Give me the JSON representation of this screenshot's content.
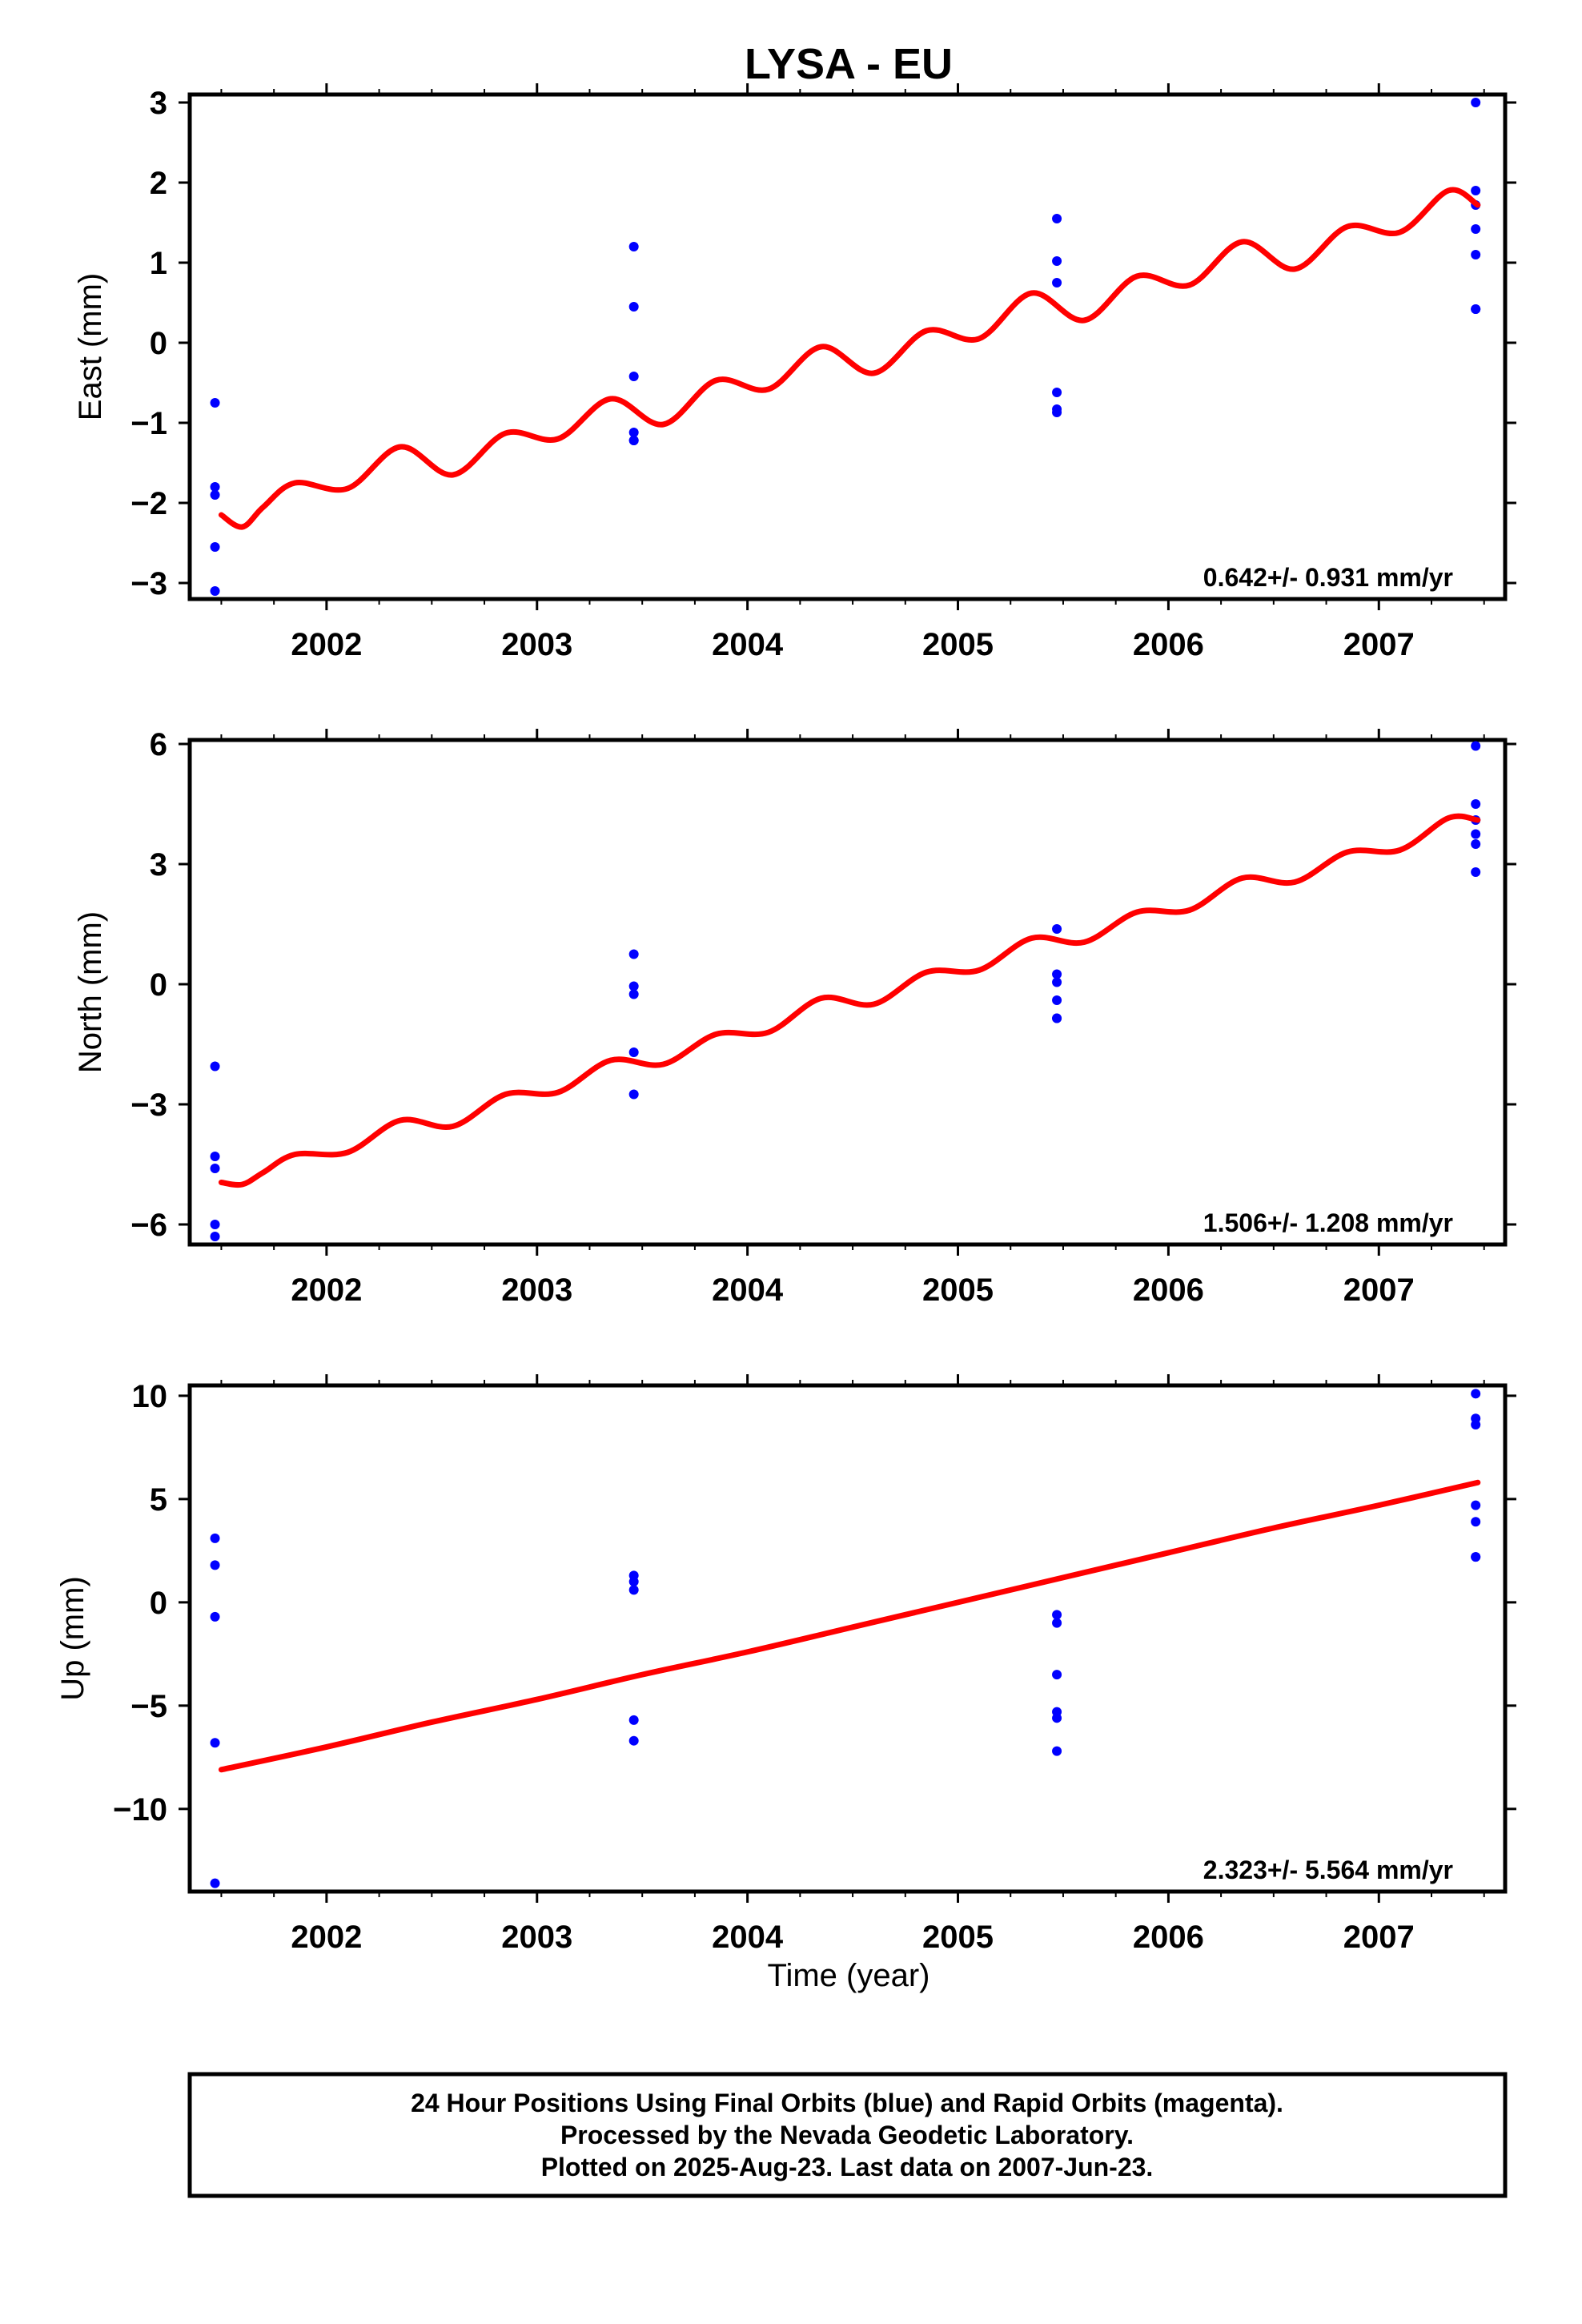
{
  "title": "LYSA - EU",
  "xlabel": "Time (year)",
  "colors": {
    "fit": "#ff0000",
    "final_orbits": "#0000ff",
    "frame": "#000000"
  },
  "caption": {
    "line1": "24 Hour Positions Using Final Orbits (blue) and Rapid Orbits (magenta).",
    "line2": "Processed by the Nevada Geodetic Laboratory.",
    "line3": "Plotted on 2025-Aug-23. Last data on 2007-Jun-23."
  },
  "chart_data": [
    {
      "type": "scatter",
      "ylabel": "East (mm)",
      "rate_label": "0.642+/- 0.931 mm/yr",
      "xlim": [
        2001.35,
        2007.6
      ],
      "ylim": [
        -3.2,
        3.1
      ],
      "x_ticks": [
        2002,
        2003,
        2004,
        2005,
        2006,
        2007
      ],
      "x_tick_labels": [
        "2002",
        "2003",
        "2004",
        "2005",
        "2006",
        "2007"
      ],
      "y_ticks": [
        -3,
        -2,
        -1,
        0,
        1,
        2,
        3
      ],
      "y_tick_labels": [
        "−3",
        "−2",
        "−1",
        "0",
        "1",
        "2",
        "3"
      ],
      "points": {
        "x": [
          2001.47,
          2001.47,
          2001.47,
          2001.47,
          2001.47,
          2003.46,
          2003.46,
          2003.46,
          2003.46,
          2003.46,
          2003.46,
          2005.47,
          2005.47,
          2005.47,
          2005.47,
          2005.47,
          2005.47,
          2007.46,
          2007.46,
          2007.46,
          2007.46,
          2007.46,
          2007.46,
          2007.46
        ],
        "y": [
          -0.75,
          -1.8,
          -1.9,
          -2.55,
          -3.1,
          1.2,
          0.45,
          -0.42,
          -1.12,
          -1.22,
          -1.22,
          1.55,
          1.02,
          0.75,
          -0.62,
          -0.83,
          -0.87,
          3.0,
          1.9,
          1.72,
          1.42,
          1.1,
          0.42,
          0.42
        ]
      },
      "fit": {
        "x": [
          2001.5,
          2001.6,
          2001.7,
          2001.85,
          2002.1,
          2002.35,
          2002.6,
          2002.85,
          2003.1,
          2003.35,
          2003.6,
          2003.85,
          2004.1,
          2004.35,
          2004.6,
          2004.85,
          2005.1,
          2005.35,
          2005.6,
          2005.85,
          2006.1,
          2006.35,
          2006.6,
          2006.85,
          2007.1,
          2007.33,
          2007.47
        ],
        "y": [
          -2.15,
          -2.3,
          -2.05,
          -1.75,
          -1.82,
          -1.3,
          -1.65,
          -1.13,
          -1.2,
          -0.7,
          -1.02,
          -0.47,
          -0.58,
          -0.05,
          -0.38,
          0.15,
          0.05,
          0.62,
          0.28,
          0.83,
          0.72,
          1.26,
          0.92,
          1.45,
          1.38,
          1.9,
          1.72
        ]
      }
    },
    {
      "type": "scatter",
      "ylabel": "North (mm)",
      "rate_label": "1.506+/- 1.208 mm/yr",
      "xlim": [
        2001.35,
        2007.6
      ],
      "ylim": [
        -6.5,
        6.1
      ],
      "x_ticks": [
        2002,
        2003,
        2004,
        2005,
        2006,
        2007
      ],
      "x_tick_labels": [
        "2002",
        "2003",
        "2004",
        "2005",
        "2006",
        "2007"
      ],
      "y_ticks": [
        -6,
        -3,
        0,
        3,
        6
      ],
      "y_tick_labels": [
        "−6",
        "−3",
        "0",
        "3",
        "6"
      ],
      "points": {
        "x": [
          2001.47,
          2001.47,
          2001.47,
          2001.47,
          2001.47,
          2003.46,
          2003.46,
          2003.46,
          2003.46,
          2003.46,
          2005.47,
          2005.47,
          2005.47,
          2005.47,
          2005.47,
          2005.47,
          2007.46,
          2007.46,
          2007.46,
          2007.46,
          2007.46,
          2007.46
        ],
        "y": [
          -2.05,
          -4.3,
          -4.6,
          -6.0,
          -6.3,
          0.75,
          -0.05,
          -0.25,
          -1.7,
          -2.75,
          1.38,
          0.25,
          0.05,
          -0.4,
          -0.85,
          -0.85,
          5.95,
          4.5,
          4.1,
          3.75,
          3.5,
          2.8
        ]
      },
      "fit": {
        "x": [
          2001.5,
          2001.6,
          2001.7,
          2001.85,
          2002.1,
          2002.35,
          2002.6,
          2002.85,
          2003.1,
          2003.35,
          2003.6,
          2003.85,
          2004.1,
          2004.35,
          2004.6,
          2004.85,
          2005.1,
          2005.35,
          2005.6,
          2005.85,
          2006.1,
          2006.35,
          2006.6,
          2006.85,
          2007.1,
          2007.33,
          2007.47
        ],
        "y": [
          -4.95,
          -5.0,
          -4.7,
          -4.25,
          -4.2,
          -3.4,
          -3.55,
          -2.75,
          -2.7,
          -1.9,
          -2.0,
          -1.25,
          -1.2,
          -0.35,
          -0.5,
          0.3,
          0.35,
          1.15,
          1.05,
          1.8,
          1.85,
          2.65,
          2.55,
          3.3,
          3.35,
          4.15,
          4.1
        ]
      }
    },
    {
      "type": "scatter",
      "ylabel": "Up (mm)",
      "rate_label": "2.323+/- 5.564 mm/yr",
      "xlim": [
        2001.35,
        2007.6
      ],
      "ylim": [
        -14.0,
        10.5
      ],
      "x_ticks": [
        2002,
        2003,
        2004,
        2005,
        2006,
        2007
      ],
      "x_tick_labels": [
        "2002",
        "2003",
        "2004",
        "2005",
        "2006",
        "2007"
      ],
      "y_ticks": [
        -10,
        -5,
        0,
        5,
        10
      ],
      "y_tick_labels": [
        "−10",
        "−5",
        "0",
        "5",
        "10"
      ],
      "points": {
        "x": [
          2001.47,
          2001.47,
          2001.47,
          2001.47,
          2001.47,
          2003.46,
          2003.46,
          2003.46,
          2003.46,
          2003.46,
          2005.47,
          2005.47,
          2005.47,
          2005.47,
          2005.47,
          2005.47,
          2007.46,
          2007.46,
          2007.46,
          2007.46,
          2007.46,
          2007.46,
          2007.46
        ],
        "y": [
          3.1,
          1.8,
          -0.7,
          -6.8,
          -13.6,
          1.3,
          1.0,
          0.6,
          -5.7,
          -6.7,
          -0.6,
          -1.0,
          -3.5,
          -5.3,
          -5.6,
          -7.2,
          10.1,
          8.9,
          8.6,
          4.7,
          3.9,
          2.2,
          2.2
        ]
      },
      "fit": {
        "x": [
          2001.5,
          2002.0,
          2002.5,
          2003.0,
          2003.5,
          2004.0,
          2004.5,
          2005.0,
          2005.5,
          2006.0,
          2006.5,
          2007.0,
          2007.47
        ],
        "y": [
          -8.1,
          -7.0,
          -5.8,
          -4.7,
          -3.5,
          -2.4,
          -1.2,
          0.0,
          1.2,
          2.4,
          3.6,
          4.7,
          5.8
        ]
      }
    }
  ]
}
